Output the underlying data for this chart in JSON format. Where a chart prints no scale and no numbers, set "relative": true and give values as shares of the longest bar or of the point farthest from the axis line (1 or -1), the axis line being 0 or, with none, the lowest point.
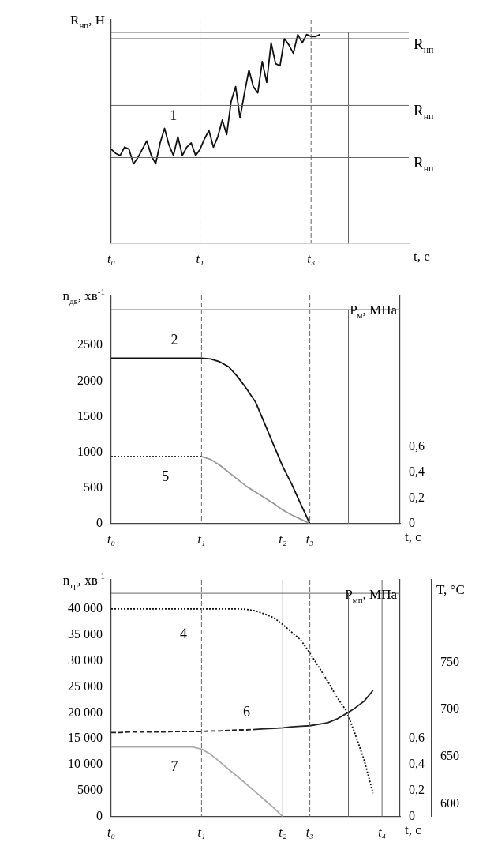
{
  "chart_data": [
    {
      "type": "line",
      "relative": true,
      "ylabel": "R$_{нп}$, Н",
      "xlabel": "t, с",
      "grid": false,
      "legend": false,
      "marker": "none",
      "categories": [
        "t₀",
        null,
        null,
        null,
        null,
        null,
        null,
        null,
        null,
        null,
        null,
        null,
        null,
        null,
        null,
        null,
        null,
        null,
        null,
        null,
        "t₁",
        null,
        null,
        null,
        null,
        null,
        null,
        null,
        null,
        null,
        null,
        null,
        null,
        null,
        null,
        null,
        null,
        null,
        null,
        null,
        null,
        null,
        null,
        null,
        null,
        "t₃",
        null,
        null,
        null,
        null,
        null,
        null,
        null,
        null,
        null,
        null,
        null,
        null,
        null,
        null,
        null,
        null,
        null,
        null,
        null,
        null,
        null,
        null
      ],
      "series": [
        {
          "name": "1",
          "color": "#111111",
          "line_style": "solid",
          "values": [
            0.45,
            0.43,
            0.42,
            0.46,
            0.45,
            0.38,
            0.41,
            0.45,
            0.49,
            0.42,
            0.38,
            0.48,
            0.55,
            0.47,
            0.42,
            0.51,
            0.42,
            0.46,
            0.48,
            0.42,
            0.45,
            0.5,
            0.54,
            0.46,
            0.51,
            0.59,
            0.52,
            0.68,
            0.75,
            0.6,
            0.72,
            0.83,
            0.75,
            0.72,
            0.87,
            0.77,
            0.96,
            0.86,
            0.85,
            0.98,
            0.95,
            0.91,
            1.0,
            0.96,
            1.0,
            0.99,
            0.99,
            1.0,
            null,
            null,
            null,
            null,
            null,
            null,
            null,
            null,
            null,
            null,
            null,
            null,
            null,
            null,
            null,
            null,
            null,
            null,
            null,
            null
          ]
        }
      ],
      "ref_lines": [
        {
          "axis": "y",
          "value": 0.98,
          "label": "R$_{нп}$",
          "color": "#666666",
          "line_style": "solid"
        },
        {
          "axis": "y",
          "value": 0.66,
          "label": "R$_{нп}$",
          "color": "#666666",
          "line_style": "solid"
        },
        {
          "axis": "y",
          "value": 0.41,
          "label": "R$_{нп}$",
          "color": "#666666",
          "line_style": "solid"
        },
        {
          "axis": "y",
          "value": 1.01,
          "color": "#666666",
          "line_style": "solid"
        },
        {
          "axis": "x",
          "value": "t₁",
          "color": "#666666",
          "line_style": "dashed"
        },
        {
          "axis": "x",
          "value": "t₃",
          "color": "#666666",
          "line_style": "dashed"
        }
      ]
    },
    {
      "type": "line",
      "ylabel": "n$_{дв}$, хв$^{-1}$",
      "y2label": "P$_{м}$, МПа",
      "xlabel": "t, с",
      "grid": false,
      "legend": false,
      "marker": "none",
      "categories": [
        "t₀",
        null,
        null,
        null,
        null,
        null,
        null,
        null,
        null,
        null,
        "t₁",
        null,
        null,
        null,
        null,
        null,
        null,
        null,
        null,
        "t₂",
        null,
        null,
        "t₃",
        null,
        null,
        null,
        null,
        null,
        null,
        null,
        null,
        null,
        null
      ],
      "ylim": [
        0,
        3200
      ],
      "yticks": [
        0,
        500,
        1000,
        1500,
        2000,
        2500
      ],
      "y2lim": [
        0,
        1.78
      ],
      "y2ticks": [
        {
          "value": 0,
          "label": "0"
        },
        {
          "value": 0.2,
          "label": "0,2"
        },
        {
          "value": 0.4,
          "label": "0,4"
        },
        {
          "value": 0.6,
          "label": "0,6"
        }
      ],
      "series": [
        {
          "name": "2",
          "color": "#111111",
          "line_style": "solid",
          "values": [
            2320,
            2320,
            2320,
            2320,
            2320,
            2320,
            2320,
            2320,
            2320,
            2320,
            2320,
            2310,
            2270,
            2200,
            2060,
            1890,
            1700,
            1400,
            1100,
            800,
            550,
            270,
            0,
            null,
            null,
            null,
            null,
            null,
            null,
            null,
            null,
            null,
            null
          ]
        },
        {
          "name": "5",
          "color": "#333333",
          "line_style": "dotted",
          "values": [
            940,
            940,
            940,
            940,
            940,
            940,
            940,
            940,
            940,
            940,
            940,
            null,
            null,
            null,
            null,
            null,
            null,
            null,
            null,
            null,
            null,
            null,
            null,
            null,
            null,
            null,
            null,
            null,
            null,
            null,
            null,
            null,
            null
          ]
        },
        {
          "color": "#999999",
          "line_style": "solid",
          "values": [
            null,
            null,
            null,
            null,
            null,
            null,
            null,
            null,
            null,
            null,
            940,
            900,
            820,
            720,
            620,
            520,
            440,
            360,
            280,
            190,
            120,
            60,
            0,
            null,
            null,
            null,
            null,
            null,
            null,
            null,
            null,
            null,
            null
          ]
        }
      ],
      "ref_lines": [
        {
          "axis": "y",
          "value": 3000,
          "color": "#666666",
          "line_style": "solid"
        },
        {
          "axis": "x",
          "value": "t₁",
          "color": "#666666",
          "line_style": "dashed"
        },
        {
          "axis": "x",
          "value": "t₃",
          "color": "#666666",
          "line_style": "dashed"
        }
      ]
    },
    {
      "type": "line",
      "ylabel": "n$_{тр}$, хв$^{-1}$",
      "y2label": "P$_{мп}$, МПа",
      "y3label": "T, °C",
      "xlabel": "t, с",
      "grid": false,
      "legend": false,
      "marker": "none",
      "categories": [
        "t₀",
        null,
        null,
        null,
        null,
        null,
        null,
        null,
        null,
        null,
        "t₁",
        null,
        null,
        null,
        null,
        null,
        null,
        null,
        null,
        "t₂",
        null,
        null,
        "t₃",
        null,
        null,
        null,
        null,
        null,
        null,
        null,
        "t₄",
        null,
        null
      ],
      "ylim": [
        0,
        45600
      ],
      "yticks": [
        {
          "value": 0,
          "label": "0"
        },
        {
          "value": 5000,
          "label": "5000"
        },
        {
          "value": 10000,
          "label": "10 000"
        },
        {
          "value": 15000,
          "label": "15 000"
        },
        {
          "value": 20000,
          "label": "20 000"
        },
        {
          "value": 25000,
          "label": "25 000"
        },
        {
          "value": 30000,
          "label": "30 000"
        },
        {
          "value": 35000,
          "label": "35 000"
        },
        {
          "value": 40000,
          "label": "40 000"
        }
      ],
      "y2lim": [
        0,
        1.82
      ],
      "y2ticks": [
        {
          "value": 0,
          "label": "0"
        },
        {
          "value": 0.2,
          "label": "0,2"
        },
        {
          "value": 0.4,
          "label": "0,4"
        },
        {
          "value": 0.6,
          "label": "0,6"
        }
      ],
      "y3lim": [
        587,
        837
      ],
      "y3ticks": [
        600,
        650,
        700,
        750
      ],
      "series": [
        {
          "name": "4",
          "color": "#111111",
          "line_style": "dotted",
          "values": [
            40000,
            40000,
            40000,
            40000,
            40000,
            40000,
            40000,
            40000,
            40000,
            40000,
            40000,
            40000,
            40000,
            40000,
            40000,
            39900,
            39600,
            39000,
            38300,
            37000,
            35500,
            34000,
            31500,
            28800,
            26000,
            23000,
            20500,
            16000,
            11000,
            4500,
            null,
            null,
            null
          ]
        },
        {
          "name": "6",
          "color": "#222222",
          "line_style": "dashed",
          "values": [
            16200,
            16200,
            16300,
            16300,
            16300,
            16300,
            16300,
            16400,
            16400,
            16400,
            16400,
            16500,
            16500,
            16600,
            16700,
            16700,
            16800,
            null,
            null,
            null,
            null,
            null,
            null,
            null,
            null,
            null,
            null,
            null,
            null,
            null,
            null,
            null,
            null
          ]
        },
        {
          "color": "#222222",
          "line_style": "solid",
          "values": [
            null,
            null,
            null,
            null,
            null,
            null,
            null,
            null,
            null,
            null,
            null,
            null,
            null,
            null,
            null,
            null,
            16800,
            16900,
            17000,
            17100,
            17300,
            17400,
            17500,
            17800,
            18100,
            18800,
            19800,
            20900,
            22200,
            24300,
            null,
            null,
            null
          ]
        },
        {
          "name": "7",
          "color": "#aaaaaa",
          "line_style": "solid",
          "values": [
            13400,
            13400,
            13400,
            13400,
            13400,
            13400,
            13400,
            13400,
            13400,
            13400,
            13000,
            12000,
            10600,
            9100,
            7700,
            6200,
            4700,
            3200,
            1700,
            0,
            null,
            null,
            null,
            null,
            null,
            null,
            null,
            null,
            null,
            null,
            null,
            null,
            null
          ]
        }
      ],
      "ref_lines": [
        {
          "axis": "y",
          "value": 43000,
          "color": "#666666",
          "line_style": "solid"
        },
        {
          "axis": "x",
          "value": "t₁",
          "color": "#666666",
          "line_style": "dashed"
        },
        {
          "axis": "x",
          "value": "t₂",
          "color": "#666666",
          "line_style": "solid"
        },
        {
          "axis": "x",
          "value": "t₃",
          "color": "#666666",
          "line_style": "dashed"
        },
        {
          "axis": "x",
          "value": "t₄",
          "color": "#666666",
          "line_style": "solid"
        }
      ]
    }
  ]
}
